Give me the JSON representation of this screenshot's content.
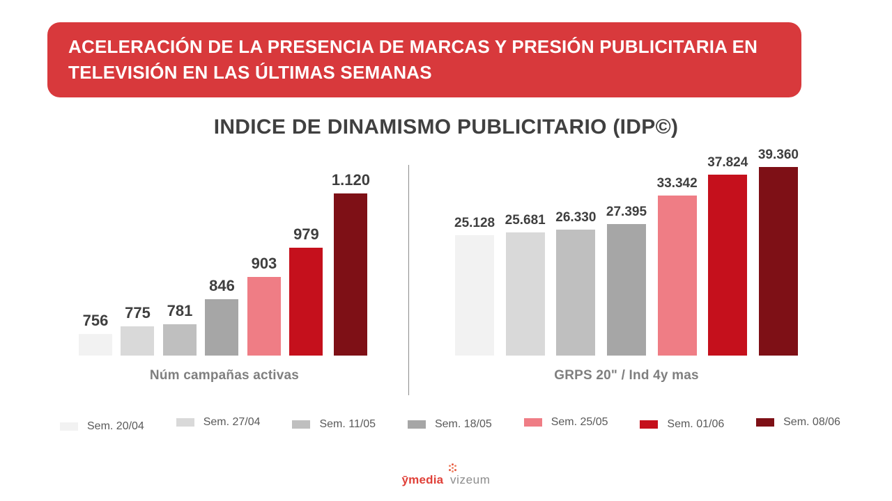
{
  "banner": {
    "line1": "ACELERACIÓN DE LA PRESENCIA DE MARCAS Y PRESIÓN PUBLICITARIA EN",
    "line2": "TELEVISIÓN EN LAS ÚLTIMAS SEMANAS",
    "bg_color": "#D8393C",
    "text_color": "#FFFFFF"
  },
  "title": "INDICE DE DINAMISMO PUBLICITARIO (IDP©)",
  "legend": [
    {
      "label": "Sem. 20/04",
      "color": "#F2F2F2"
    },
    {
      "label": "Sem. 27/04",
      "color": "#D9D9D9"
    },
    {
      "label": "Sem. 11/05",
      "color": "#BFBFBF"
    },
    {
      "label": "Sem. 18/05",
      "color": "#A6A6A6"
    },
    {
      "label": "Sem. 25/05",
      "color": "#EF7D85"
    },
    {
      "label": "Sem. 01/06",
      "color": "#C5101C"
    },
    {
      "label": "Sem. 08/06",
      "color": "#7E1016"
    }
  ],
  "chart_data": [
    {
      "type": "bar",
      "title": "Núm campañas activas",
      "categories": [
        "Sem. 20/04",
        "Sem. 27/04",
        "Sem. 11/05",
        "Sem. 18/05",
        "Sem. 25/05",
        "Sem. 01/06",
        "Sem. 08/06"
      ],
      "values": [
        756,
        775,
        781,
        846,
        903,
        979,
        1120
      ],
      "value_labels": [
        "756",
        "775",
        "781",
        "846",
        "903",
        "979",
        "1.120"
      ],
      "series_colors": [
        "#F2F2F2",
        "#D9D9D9",
        "#BFBFBF",
        "#A6A6A6",
        "#EF7D85",
        "#C5101C",
        "#7E1016"
      ],
      "ylim": [
        700,
        1120
      ],
      "grid": false,
      "legend_position": "bottom",
      "xlabel": "Núm campañas activas",
      "ylabel": ""
    },
    {
      "type": "bar",
      "title": "GRPS 20\" / Ind 4y mas",
      "categories": [
        "Sem. 20/04",
        "Sem. 27/04",
        "Sem. 11/05",
        "Sem. 18/05",
        "Sem. 25/05",
        "Sem. 01/06",
        "Sem. 08/06"
      ],
      "values": [
        25128,
        25681,
        26330,
        27395,
        33342,
        37824,
        39360
      ],
      "value_labels": [
        "25.128",
        "25.681",
        "26.330",
        "27.395",
        "33.342",
        "37.824",
        "39.360"
      ],
      "series_colors": [
        "#F2F2F2",
        "#D9D9D9",
        "#BFBFBF",
        "#A6A6A6",
        "#EF7D85",
        "#C5101C",
        "#7E1016"
      ],
      "ylim": [
        0,
        39360
      ],
      "grid": false,
      "legend_position": "bottom",
      "xlabel": "GRPS 20\" / Ind 4y mas",
      "ylabel": ""
    }
  ],
  "footer": {
    "brand_bold": "ȳmedia",
    "brand_light": "vizeum",
    "brand_red": "#E04038",
    "brand_gray": "#8C8C8C"
  }
}
